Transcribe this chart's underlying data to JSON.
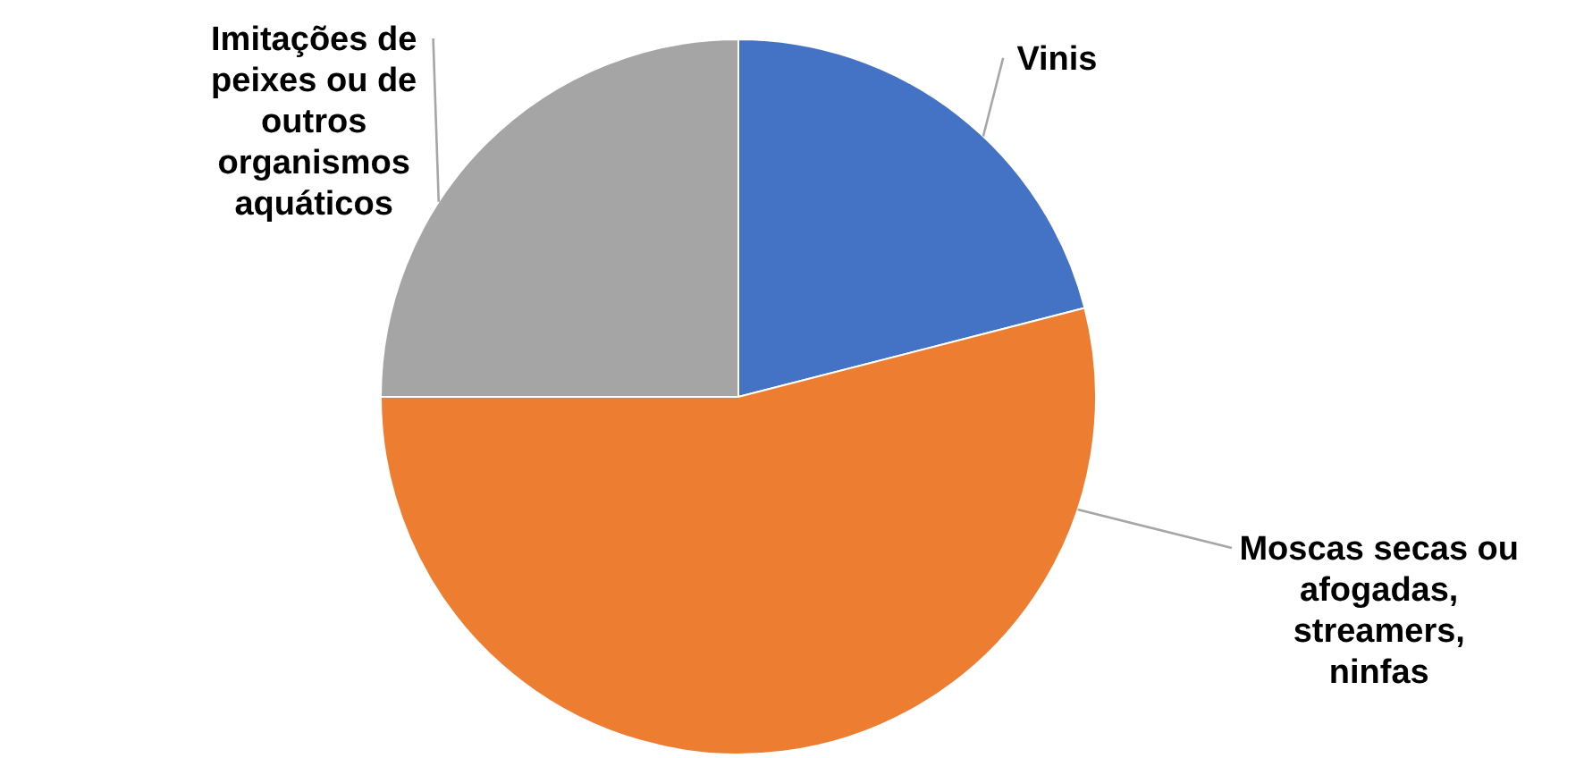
{
  "chart_data": {
    "type": "pie",
    "categories": [
      "Vinis",
      "Moscas secas ou afogadas, streamers, ninfas",
      "Imitações de peixes ou de outros organismos aquáticos"
    ],
    "values": [
      21,
      54,
      25
    ],
    "colors": [
      "#4472c4",
      "#ed7d31",
      "#a5a5a5"
    ]
  }
}
